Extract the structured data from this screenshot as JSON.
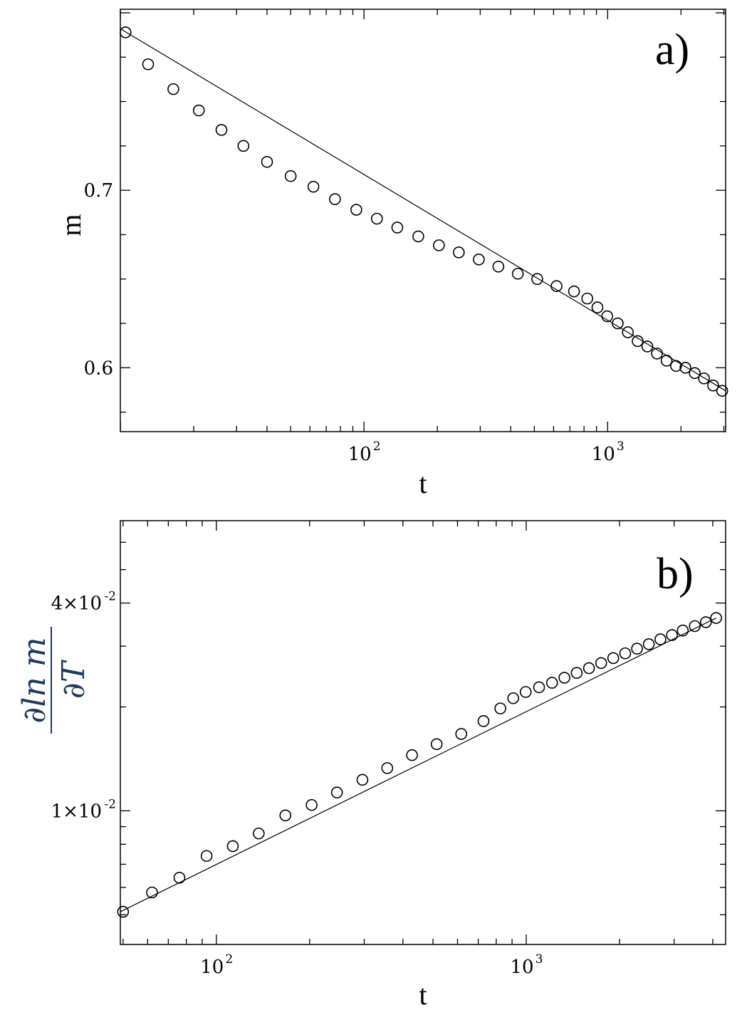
{
  "chart_data": [
    {
      "type": "scatter",
      "panel_label": "a)",
      "xlabel": "t",
      "ylabel": "m",
      "x_scale": "log",
      "y_scale": "linear",
      "xlim": [
        10,
        3050
      ],
      "ylim": [
        0.564,
        0.802
      ],
      "x_ticks": [
        {
          "value": 100,
          "base": "10",
          "exp": "2"
        },
        {
          "value": 1000,
          "base": "10",
          "exp": "3"
        }
      ],
      "y_ticks": [
        {
          "value": 0.6,
          "label": "0.6"
        },
        {
          "value": 0.7,
          "label": "0.7"
        }
      ],
      "grid": false,
      "series": [
        {
          "marker": "open-circle",
          "x": [
            10.5,
            13,
            16.5,
            21,
            26,
            32,
            40,
            50,
            62,
            76,
            93,
            113,
            137,
            167,
            203,
            245,
            296,
            356,
            428,
            514,
            617,
            728,
            825,
            908,
            996,
            1100,
            1211,
            1328,
            1455,
            1594,
            1745,
            1909,
            2086,
            2278,
            2486,
            2710,
            2953
          ],
          "y": [
            0.789,
            0.771,
            0.757,
            0.745,
            0.734,
            0.725,
            0.716,
            0.708,
            0.702,
            0.695,
            0.689,
            0.684,
            0.679,
            0.674,
            0.669,
            0.665,
            0.661,
            0.657,
            0.653,
            0.65,
            0.646,
            0.643,
            0.639,
            0.634,
            0.629,
            0.625,
            0.62,
            0.615,
            0.612,
            0.608,
            0.604,
            0.601,
            0.6,
            0.597,
            0.594,
            0.59,
            0.587
          ]
        },
        {
          "line": "fit",
          "x": [
            10,
            3050
          ],
          "y": [
            0.791,
            0.587
          ]
        }
      ]
    },
    {
      "type": "scatter",
      "panel_label": "b)",
      "xlabel": "t",
      "ylabel_numerator": "∂ln m",
      "ylabel_denominator": "∂T",
      "x_scale": "log",
      "y_scale": "log",
      "xlim": [
        49,
        4400
      ],
      "ylim": [
        0.0041,
        0.0693
      ],
      "x_ticks": [
        {
          "value": 100,
          "base": "10",
          "exp": "2"
        },
        {
          "value": 1000,
          "base": "10",
          "exp": "3"
        }
      ],
      "y_ticks": [
        {
          "value": 0.01,
          "mant": "1×10",
          "exp": "-2"
        },
        {
          "value": 0.04,
          "mant": "4×10",
          "exp": "-2"
        }
      ],
      "grid": false,
      "series": [
        {
          "marker": "open-circle",
          "x": [
            50,
            62,
            76,
            93,
            113,
            137,
            167,
            203,
            245,
            296,
            356,
            428,
            514,
            617,
            728,
            825,
            908,
            996,
            1100,
            1211,
            1328,
            1455,
            1594,
            1745,
            1909,
            2086,
            2278,
            2486,
            2710,
            2953,
            3200,
            3500,
            3800,
            4100
          ],
          "y": [
            0.0051,
            0.0058,
            0.0064,
            0.0074,
            0.0079,
            0.0086,
            0.0097,
            0.0104,
            0.0113,
            0.0123,
            0.0133,
            0.0145,
            0.0156,
            0.0167,
            0.0182,
            0.0198,
            0.0212,
            0.0221,
            0.0228,
            0.0235,
            0.0243,
            0.0251,
            0.0259,
            0.0268,
            0.0277,
            0.0286,
            0.0295,
            0.0304,
            0.0314,
            0.0323,
            0.0333,
            0.0343,
            0.0352,
            0.0362
          ]
        },
        {
          "line": "fit",
          "x": [
            49,
            4100
          ],
          "y": [
            0.0051,
            0.0362
          ]
        }
      ]
    }
  ]
}
